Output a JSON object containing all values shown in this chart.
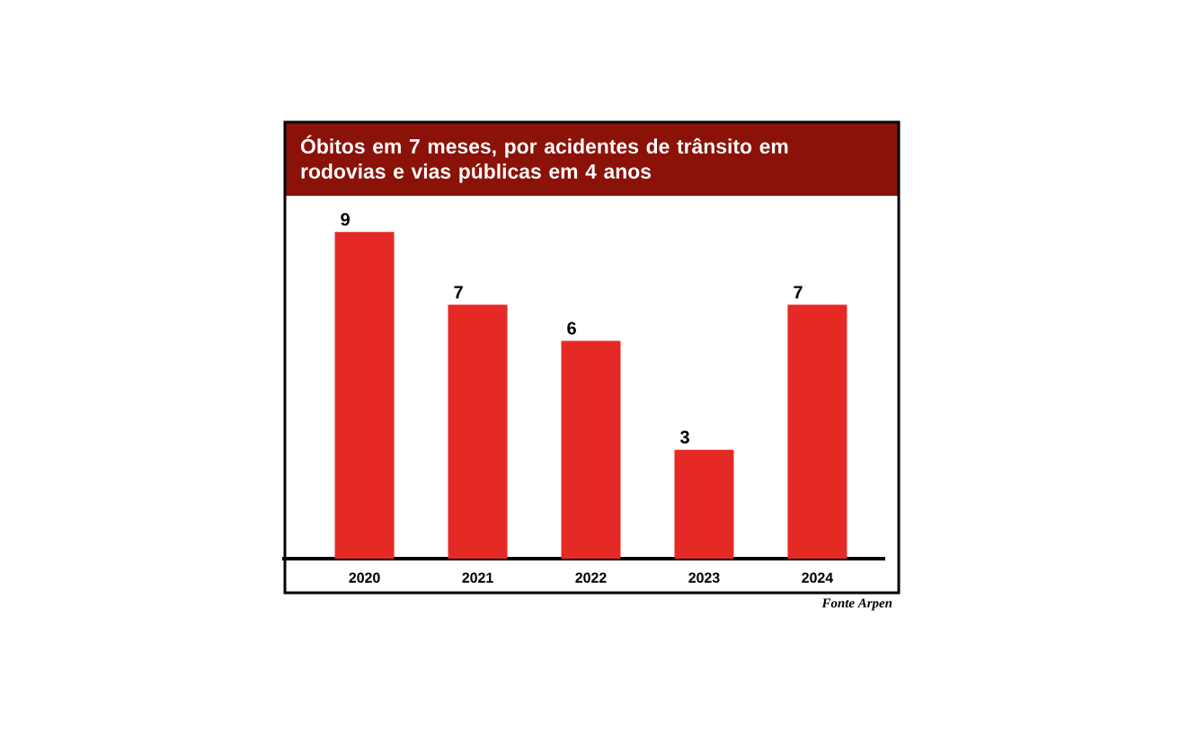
{
  "chart_data": {
    "type": "bar",
    "title": "Óbitos em 7 meses, por acidentes de trânsito em rodovias e vias públicas em 4 anos",
    "categories": [
      "2020",
      "2021",
      "2022",
      "2023",
      "2024"
    ],
    "values": [
      9,
      7,
      6,
      3,
      7
    ],
    "color": "#e52a26",
    "data_labels": true,
    "annotations": [
      "Fonte Arpen"
    ]
  }
}
